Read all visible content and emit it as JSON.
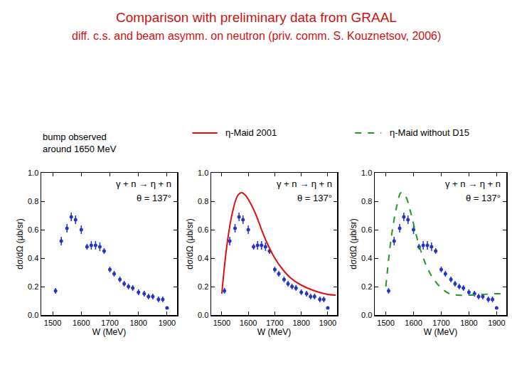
{
  "title": "Comparison with preliminary data from GRAAL",
  "subtitle": "diff. c.s. and beam asymm. on neutron (priv. comm. S. Kouznetsov, 2006)",
  "chart_data": [
    {
      "type": "scatter",
      "title": "bump observed\naround 1650 MeV",
      "x_label": "W (MeV)",
      "y_label": "dσ/dΩ (μb/sr)",
      "annotations": [
        "γ + n → η + n",
        "θ = 137°"
      ],
      "xlim": [
        1460,
        1935
      ],
      "xticks": [
        1500,
        1600,
        1700,
        1800,
        1900
      ],
      "ylim": [
        0,
        1.0
      ],
      "yticks": [
        {
          "value": 0,
          "label": "0.0"
        },
        0.2,
        0.4,
        0.6,
        0.8,
        {
          "value": 1.0,
          "label": "1.0"
        }
      ],
      "series": [
        {
          "type": "scatter",
          "marker": "circle",
          "color": "#2233cc",
          "x": [
            1510,
            1530,
            1550,
            1565,
            1580,
            1600,
            1620,
            1635,
            1650,
            1665,
            1680,
            1700,
            1715,
            1735,
            1750,
            1765,
            1780,
            1800,
            1820,
            1835,
            1850,
            1870,
            1885,
            1900
          ],
          "values": [
            0.17,
            0.52,
            0.61,
            0.69,
            0.67,
            0.6,
            0.48,
            0.49,
            0.49,
            0.48,
            0.45,
            0.32,
            0.29,
            0.25,
            0.22,
            0.2,
            0.19,
            0.16,
            0.15,
            0.13,
            0.13,
            0.11,
            0.11,
            0.05
          ],
          "errors": [
            0.02,
            0.03,
            0.03,
            0.03,
            0.03,
            0.03,
            0.02,
            0.03,
            0.03,
            0.03,
            0.02,
            0.02,
            0.02,
            0.02,
            0.02,
            0.02,
            0.02,
            0.02,
            0.02,
            0.02,
            0.02,
            0.02,
            0.02,
            0.01
          ]
        }
      ]
    },
    {
      "type": "scatter",
      "x_label": "W (MeV)",
      "y_label": "dσ/dΩ (μb/sr)",
      "annotations": [
        "γ + n → η + n",
        "θ = 137°"
      ],
      "xlim": [
        1460,
        1935
      ],
      "xticks": [
        1500,
        1600,
        1700,
        1800,
        1900
      ],
      "ylim": [
        0,
        1.0
      ],
      "yticks": [
        {
          "value": 0,
          "label": "0.0"
        },
        0.2,
        0.4,
        0.6,
        0.8,
        {
          "value": 1.0,
          "label": "1.0"
        }
      ],
      "series": [
        {
          "type": "scatter",
          "marker": "circle",
          "color": "#2233cc",
          "x": [
            1510,
            1530,
            1550,
            1565,
            1580,
            1600,
            1620,
            1635,
            1650,
            1665,
            1680,
            1700,
            1715,
            1735,
            1750,
            1765,
            1780,
            1800,
            1820,
            1835,
            1850,
            1870,
            1885,
            1900
          ],
          "values": [
            0.17,
            0.52,
            0.61,
            0.69,
            0.67,
            0.6,
            0.48,
            0.49,
            0.49,
            0.48,
            0.45,
            0.32,
            0.29,
            0.25,
            0.22,
            0.2,
            0.19,
            0.16,
            0.15,
            0.13,
            0.13,
            0.11,
            0.11,
            0.05
          ],
          "errors": [
            0.02,
            0.03,
            0.03,
            0.03,
            0.03,
            0.03,
            0.02,
            0.03,
            0.03,
            0.03,
            0.02,
            0.02,
            0.02,
            0.02,
            0.02,
            0.02,
            0.02,
            0.02,
            0.02,
            0.02,
            0.02,
            0.02,
            0.02,
            0.01
          ]
        },
        {
          "type": "line",
          "name": "η-Maid 2001",
          "color": "#dd1111",
          "line_style": "solid",
          "x": [
            1500,
            1520,
            1540,
            1560,
            1575,
            1590,
            1610,
            1630,
            1650,
            1670,
            1700,
            1730,
            1760,
            1800,
            1850,
            1900,
            1930
          ],
          "values": [
            0.15,
            0.5,
            0.72,
            0.84,
            0.86,
            0.84,
            0.78,
            0.7,
            0.6,
            0.51,
            0.4,
            0.32,
            0.26,
            0.21,
            0.17,
            0.145,
            0.14
          ]
        }
      ]
    },
    {
      "type": "scatter",
      "x_label": "W (MeV)",
      "y_label": "dσ/dΩ (μb/sr)",
      "annotations": [
        "γ + n → η + n",
        "θ = 137°"
      ],
      "xlim": [
        1460,
        1935
      ],
      "xticks": [
        1500,
        1600,
        1700,
        1800,
        1900
      ],
      "ylim": [
        0,
        1.0
      ],
      "yticks": [
        {
          "value": 0,
          "label": "0.0"
        },
        0.2,
        0.4,
        0.6,
        0.8,
        {
          "value": 1.0,
          "label": "1.0"
        }
      ],
      "series": [
        {
          "type": "scatter",
          "marker": "circle",
          "color": "#2233cc",
          "x": [
            1510,
            1530,
            1550,
            1565,
            1580,
            1600,
            1620,
            1635,
            1650,
            1665,
            1680,
            1700,
            1715,
            1735,
            1750,
            1765,
            1780,
            1800,
            1820,
            1835,
            1850,
            1870,
            1885,
            1900
          ],
          "values": [
            0.17,
            0.52,
            0.61,
            0.69,
            0.67,
            0.6,
            0.48,
            0.49,
            0.49,
            0.48,
            0.45,
            0.32,
            0.29,
            0.25,
            0.22,
            0.2,
            0.19,
            0.16,
            0.15,
            0.13,
            0.13,
            0.11,
            0.11,
            0.05
          ],
          "errors": [
            0.02,
            0.03,
            0.03,
            0.03,
            0.03,
            0.03,
            0.02,
            0.03,
            0.03,
            0.03,
            0.02,
            0.02,
            0.02,
            0.02,
            0.02,
            0.02,
            0.02,
            0.02,
            0.02,
            0.02,
            0.02,
            0.02,
            0.02,
            0.01
          ]
        },
        {
          "type": "line",
          "name": "η-Maid without D15",
          "color": "#229922",
          "line_style": "dashed",
          "x": [
            1500,
            1520,
            1540,
            1555,
            1570,
            1590,
            1610,
            1630,
            1650,
            1670,
            1700,
            1730,
            1760,
            1800,
            1850,
            1900,
            1930
          ],
          "values": [
            0.2,
            0.55,
            0.77,
            0.86,
            0.84,
            0.72,
            0.56,
            0.43,
            0.33,
            0.26,
            0.19,
            0.15,
            0.14,
            0.14,
            0.145,
            0.15,
            0.15
          ]
        }
      ]
    }
  ]
}
